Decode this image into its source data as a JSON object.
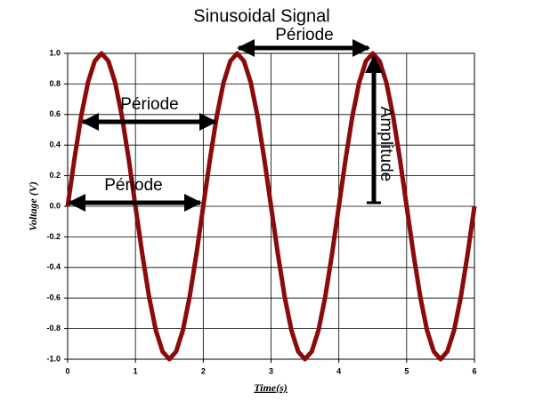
{
  "chart_data": {
    "type": "line",
    "title": "Sinusoidal Signal",
    "x_label": "Time(s)",
    "y_label": "Voltage (V)",
    "x": [
      0,
      0.1,
      0.2,
      0.3,
      0.4,
      0.5,
      0.6,
      0.7,
      0.8,
      0.9,
      1,
      1.1,
      1.2,
      1.3,
      1.4,
      1.5,
      1.6,
      1.7,
      1.8,
      1.9,
      2,
      2.1,
      2.2,
      2.3,
      2.4,
      2.5,
      2.6,
      2.7,
      2.8,
      2.9,
      3,
      3.1,
      3.2,
      3.3,
      3.4,
      3.5,
      3.6,
      3.7,
      3.8,
      3.9,
      4,
      4.1,
      4.2,
      4.3,
      4.4,
      4.5,
      4.6,
      4.7,
      4.8,
      4.9,
      5,
      5.1,
      5.2,
      5.3,
      5.4,
      5.5,
      5.6,
      5.7,
      5.8,
      5.9,
      6
    ],
    "values": [
      0,
      0.31,
      0.59,
      0.81,
      0.95,
      1,
      0.95,
      0.81,
      0.59,
      0.31,
      0,
      -0.31,
      -0.59,
      -0.81,
      -0.95,
      -1,
      -0.95,
      -0.81,
      -0.59,
      -0.31,
      0,
      0.31,
      0.59,
      0.81,
      0.95,
      1,
      0.95,
      0.81,
      0.59,
      0.31,
      0,
      -0.31,
      -0.59,
      -0.81,
      -0.95,
      -1,
      -0.95,
      -0.81,
      -0.59,
      -0.31,
      0,
      0.31,
      0.59,
      0.81,
      0.95,
      1,
      0.95,
      0.81,
      0.59,
      0.31,
      0,
      -0.31,
      -0.59,
      -0.81,
      -0.95,
      -1,
      -0.95,
      -0.81,
      -0.59,
      -0.31,
      0
    ],
    "color": "#8b0a0a",
    "xlim": [
      0,
      6
    ],
    "xticks": [
      0,
      1,
      2,
      3,
      4,
      5,
      6
    ],
    "ylim": [
      -1,
      1
    ],
    "yticks": [
      {
        "value": -1,
        "label": "-1.0"
      },
      {
        "value": -0.8,
        "label": "-0.8"
      },
      {
        "value": -0.6,
        "label": "-0.6"
      },
      {
        "value": -0.4,
        "label": "-0.4"
      },
      {
        "value": -0.2,
        "label": "-0.2"
      },
      {
        "value": 0,
        "label": "0.0"
      },
      {
        "value": 0.2,
        "label": "0.2"
      },
      {
        "value": 0.4,
        "label": "0.4"
      },
      {
        "value": 0.6,
        "label": "0.6"
      },
      {
        "value": 0.8,
        "label": "0.8"
      },
      {
        "value": 1,
        "label": "1.0"
      }
    ],
    "grid": true,
    "annotations": [
      "Période",
      "Période",
      "Période",
      "Amplitude"
    ]
  }
}
